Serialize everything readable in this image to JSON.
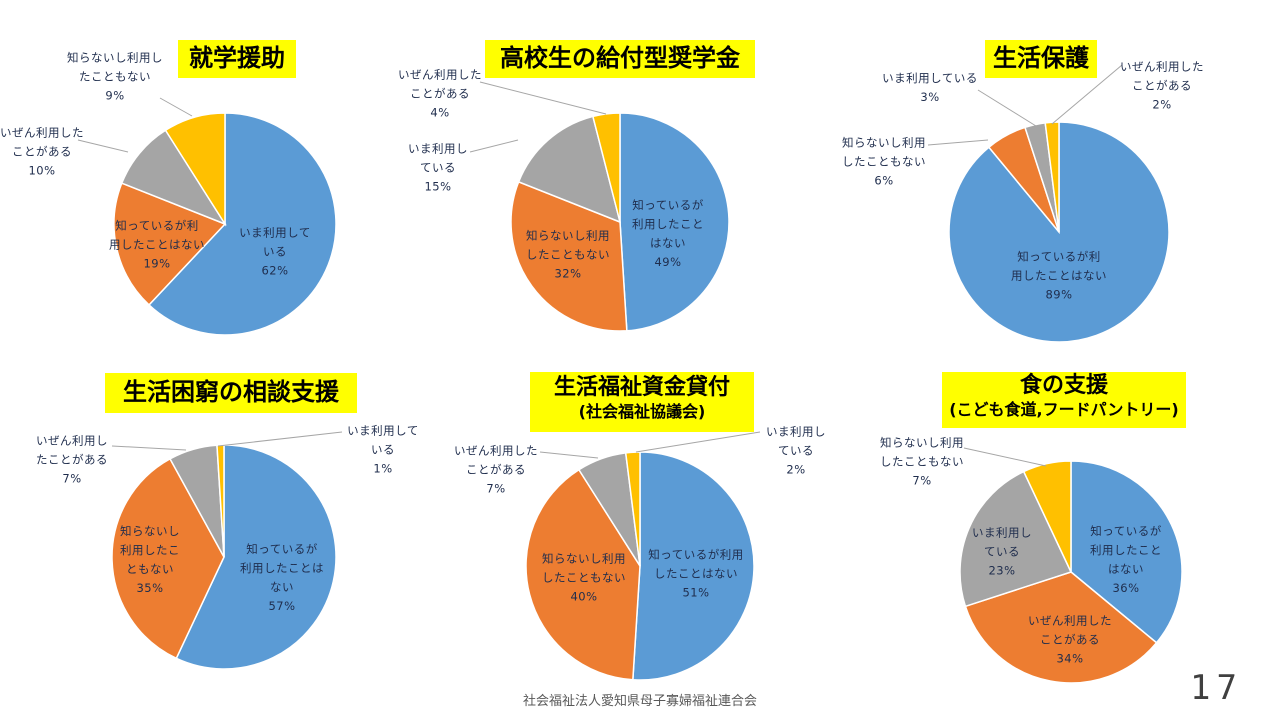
{
  "colors": {
    "blue": "#5b9bd5",
    "orange": "#ed7d31",
    "gray": "#a5a5a5",
    "yellow": "#ffc000",
    "title_bg": "#ffff00"
  },
  "chart_data": [
    {
      "type": "pie",
      "title": "就学援助",
      "slices": [
        {
          "label": "いま利用して\nいる",
          "value": 62,
          "pct": "62%",
          "color": "#5b9bd5"
        },
        {
          "label": "知っているが利\n用したことはない",
          "value": 19,
          "pct": "19%",
          "color": "#ed7d31"
        },
        {
          "label": "いぜん利用した\nことがある",
          "value": 10,
          "pct": "10%",
          "color": "#a5a5a5"
        },
        {
          "label": "知らないし利用し\nたこともない",
          "value": 9,
          "pct": "9%",
          "color": "#ffc000"
        }
      ]
    },
    {
      "type": "pie",
      "title": "高校生の給付型奨学金",
      "slices": [
        {
          "label": "知っているが\n利用したこと\nはない",
          "value": 49,
          "pct": "49%",
          "color": "#5b9bd5"
        },
        {
          "label": "知らないし利用\nしたこともない",
          "value": 32,
          "pct": "32%",
          "color": "#ed7d31"
        },
        {
          "label": "いま利用し\nている",
          "value": 15,
          "pct": "15%",
          "color": "#a5a5a5"
        },
        {
          "label": "いぜん利用した\nことがある",
          "value": 4,
          "pct": "4%",
          "color": "#ffc000"
        }
      ]
    },
    {
      "type": "pie",
      "title": "生活保護",
      "slices": [
        {
          "label": "知っているが利\n用したことはない",
          "value": 89,
          "pct": "89%",
          "color": "#5b9bd5"
        },
        {
          "label": "知らないし利用\nしたこともない",
          "value": 6,
          "pct": "6%",
          "color": "#ed7d31"
        },
        {
          "label": "いま利用している",
          "value": 3,
          "pct": "3%",
          "color": "#a5a5a5"
        },
        {
          "label": "いぜん利用した\nことがある",
          "value": 2,
          "pct": "2%",
          "color": "#ffc000"
        }
      ]
    },
    {
      "type": "pie",
      "title": "生活困窮の相談支援",
      "slices": [
        {
          "label": "知っているが\n利用したことは\nない",
          "value": 57,
          "pct": "57%",
          "color": "#5b9bd5"
        },
        {
          "label": "知らないし\n利用したこ\nともない",
          "value": 35,
          "pct": "35%",
          "color": "#ed7d31"
        },
        {
          "label": "いぜん利用し\nたことがある",
          "value": 7,
          "pct": "7%",
          "color": "#a5a5a5"
        },
        {
          "label": "いま利用して\nいる",
          "value": 1,
          "pct": "1%",
          "color": "#ffc000"
        }
      ]
    },
    {
      "type": "pie",
      "title": "生活福祉資金貸付",
      "subtitle": "(社会福祉協議会)",
      "slices": [
        {
          "label": "知っているが利用\nしたことはない",
          "value": 51,
          "pct": "51%",
          "color": "#5b9bd5"
        },
        {
          "label": "知らないし利用\nしたこともない",
          "value": 40,
          "pct": "40%",
          "color": "#ed7d31"
        },
        {
          "label": "いぜん利用した\nことがある",
          "value": 7,
          "pct": "7%",
          "color": "#a5a5a5"
        },
        {
          "label": "いま利用し\nている",
          "value": 2,
          "pct": "2%",
          "color": "#ffc000"
        }
      ]
    },
    {
      "type": "pie",
      "title": "食の支援",
      "subtitle": "(こども食道,フードパントリー)",
      "slices": [
        {
          "label": "知っているが\n利用したこと\nはない",
          "value": 36,
          "pct": "36%",
          "color": "#5b9bd5"
        },
        {
          "label": "いぜん利用した\nことがある",
          "value": 34,
          "pct": "34%",
          "color": "#ed7d31"
        },
        {
          "label": "いま利用し\nている",
          "value": 23,
          "pct": "23%",
          "color": "#a5a5a5"
        },
        {
          "label": "知らないし利用\nしたこともない",
          "value": 7,
          "pct": "7%",
          "color": "#ffc000"
        }
      ]
    }
  ],
  "footer": "社会福祉法人愛知県母子寡婦福祉連合会",
  "page_number": "17"
}
